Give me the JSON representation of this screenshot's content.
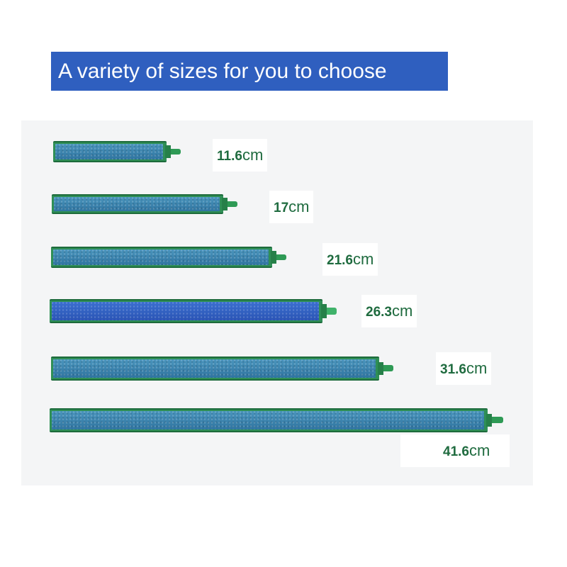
{
  "title": "A variety of sizes for you to choose",
  "colors": {
    "banner": "#2f5fbf",
    "foam": "#3a86b0",
    "frame": "#2f8f56",
    "label": "#1f6b3f"
  },
  "sizes": [
    {
      "value": "11.6",
      "unit": "cm"
    },
    {
      "value": "17",
      "unit": "cm"
    },
    {
      "value": "21.6",
      "unit": "cm"
    },
    {
      "value": "26.3",
      "unit": "cm"
    },
    {
      "value": "31.6",
      "unit": "cm"
    },
    {
      "value": "41.6",
      "unit": "cm"
    }
  ]
}
